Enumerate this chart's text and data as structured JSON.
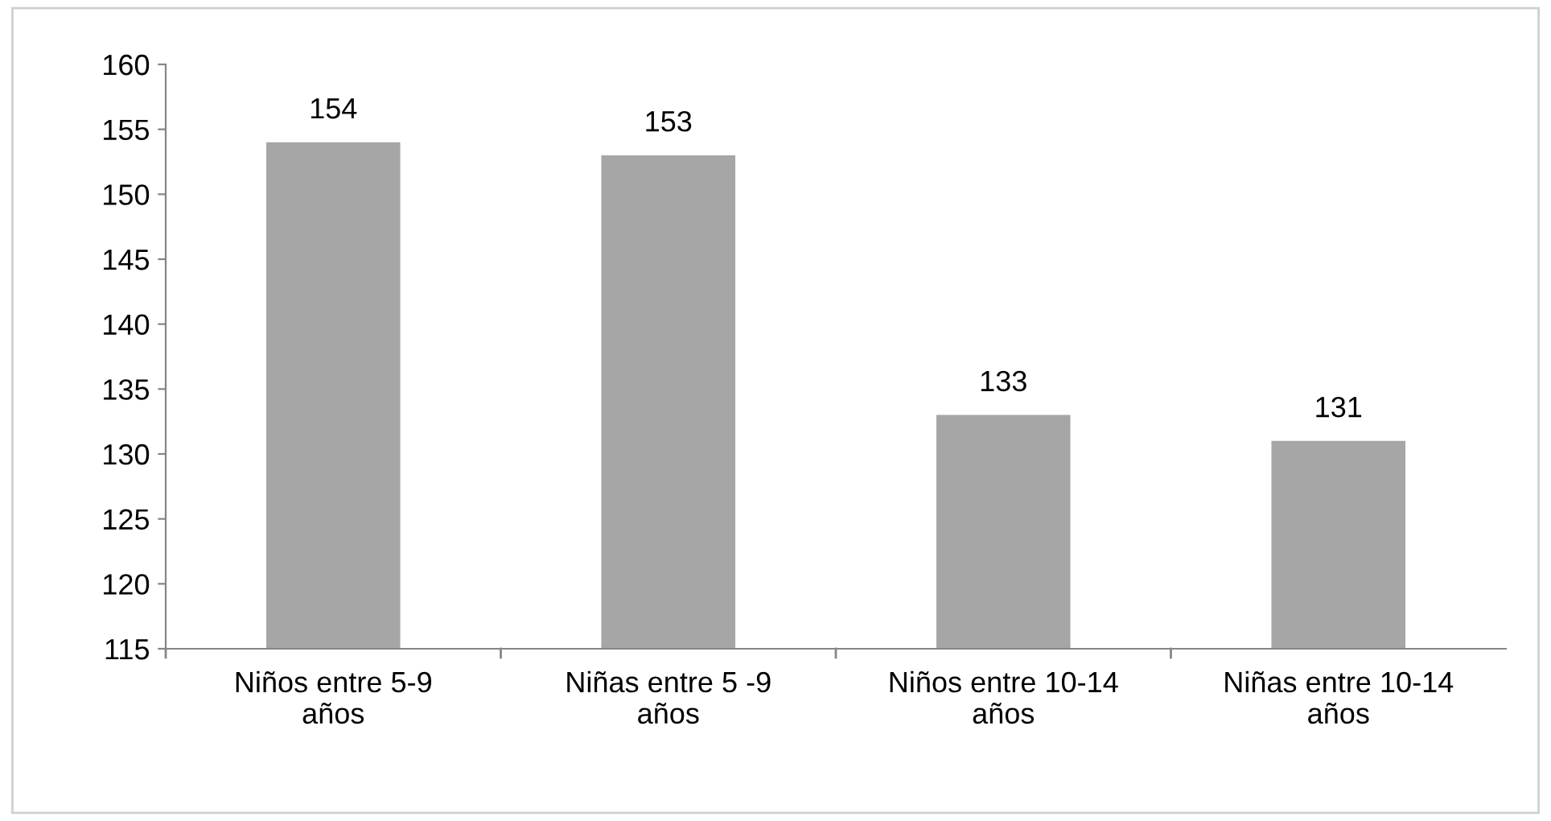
{
  "chart_data": {
    "type": "bar",
    "categories": [
      "Niños entre 5-9\naños",
      "Niñas entre 5 -9\naños",
      "Niños entre 10-14\naños",
      "Niñas entre 10-14\naños"
    ],
    "values": [
      154,
      153,
      133,
      131
    ],
    "color": "#a6a6a6",
    "ylim": [
      115,
      160
    ],
    "yticks": [
      115,
      120,
      125,
      130,
      135,
      140,
      145,
      150,
      155,
      160
    ],
    "grid": false,
    "legend": false,
    "data_labels": true
  }
}
